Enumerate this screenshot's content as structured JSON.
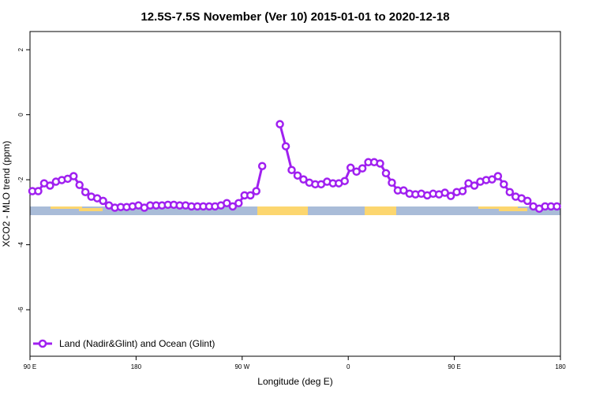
{
  "chart_data": {
    "type": "line",
    "title": "12.5S-7.5S November (Ver 10)   2015-01-01 to 2020-12-18",
    "x_label": "Longitude (deg E)",
    "y_label": "XCO2 - MLO trend (ppm)",
    "xlim": [
      90,
      540
    ],
    "ylim": [
      -7.43,
      2.56
    ],
    "xticks": [
      {
        "value": 90,
        "label": "90 E"
      },
      {
        "value": 180,
        "label": "180"
      },
      {
        "value": 270,
        "label": "90 W"
      },
      {
        "value": 360,
        "label": "0"
      },
      {
        "value": 450,
        "label": "90 E"
      },
      {
        "value": 540,
        "label": "180"
      }
    ],
    "yticks": [
      2,
      0,
      -2,
      -4,
      -6
    ],
    "legend_position": "bottom-left",
    "x": [
      92,
      97,
      102,
      107,
      112,
      117,
      122,
      127,
      132,
      137,
      142,
      147,
      152,
      157,
      162,
      167,
      172,
      177,
      182,
      187,
      192,
      197,
      202,
      207,
      212,
      217,
      222,
      227,
      232,
      237,
      242,
      247,
      252,
      257,
      262,
      267,
      272,
      277,
      282,
      287,
      292,
      297,
      302,
      307,
      312,
      317,
      322,
      327,
      332,
      337,
      342,
      347,
      352,
      357,
      362,
      367,
      372,
      377,
      382,
      387,
      392,
      397,
      402,
      407,
      412,
      417,
      422,
      427,
      432,
      437,
      442,
      447,
      452,
      457,
      462,
      467,
      472,
      477,
      482,
      487,
      492,
      497,
      502,
      507,
      512,
      517,
      522,
      527,
      532,
      537
    ],
    "series": [
      {
        "name": "Land (Nadir&Glint) and Ocean (Glint)",
        "color": "#a020f0",
        "values": [
          -2.35,
          -2.35,
          -2.11,
          -2.18,
          -2.06,
          -2.01,
          -1.97,
          -1.89,
          -2.16,
          -2.38,
          -2.52,
          -2.57,
          -2.65,
          -2.79,
          -2.86,
          -2.84,
          -2.84,
          -2.82,
          -2.79,
          -2.86,
          -2.79,
          -2.79,
          -2.79,
          -2.77,
          -2.77,
          -2.79,
          -2.79,
          -2.82,
          -2.82,
          -2.82,
          -2.82,
          -2.82,
          -2.79,
          -2.72,
          -2.82,
          -2.72,
          -2.48,
          -2.48,
          -2.35,
          -1.58,
          null,
          null,
          -0.29,
          -0.97,
          -1.7,
          -1.87,
          -1.99,
          -2.09,
          -2.14,
          -2.14,
          -2.06,
          -2.11,
          -2.11,
          -2.04,
          -1.63,
          -1.75,
          -1.65,
          -1.46,
          -1.46,
          -1.5,
          -1.8,
          -2.09,
          -2.33,
          -2.33,
          -2.43,
          -2.45,
          -2.43,
          -2.48,
          -2.43,
          -2.45,
          -2.4,
          -2.5,
          -2.38,
          -2.35,
          -2.11,
          -2.18,
          -2.06,
          -2.01,
          -1.99,
          -1.89,
          -2.14,
          -2.38,
          -2.52,
          -2.57,
          -2.65,
          -2.82,
          -2.89,
          -2.82,
          -2.82,
          -2.82
        ]
      }
    ]
  }
}
